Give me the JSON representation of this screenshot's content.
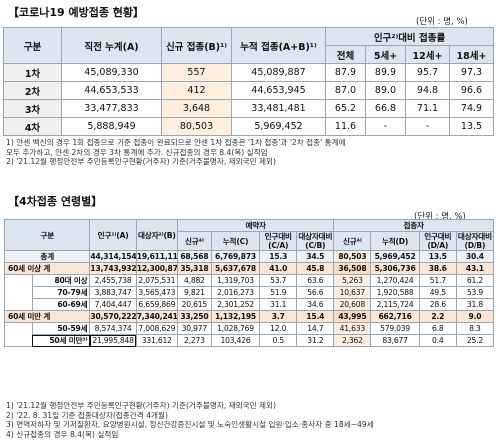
{
  "section1": {
    "title": "【코로나19 예방접종 현황】",
    "unit": "(단위 : 명, %)",
    "headers": {
      "category": "구분",
      "prev_cum": "직전 누계(A)",
      "new": "신규 접종(B)¹⁾",
      "cum": "누적 접종(A+B)¹⁾",
      "ratio_group": "인구²⁾대비 접종률",
      "all": "전체",
      "age5": "5세+",
      "age12": "12세+",
      "age18": "18세+"
    },
    "rows": [
      {
        "label": "1차",
        "prev": "45,089,330",
        "new": "557",
        "cum": "45,089,887",
        "all": "87.9",
        "a5": "89.9",
        "a12": "95.7",
        "a18": "97.3"
      },
      {
        "label": "2차",
        "prev": "44,653,533",
        "new": "412",
        "cum": "44,653,945",
        "all": "87.0",
        "a5": "89.0",
        "a12": "94.8",
        "a18": "96.6"
      },
      {
        "label": "3차",
        "prev": "33,477,833",
        "new": "3,648",
        "cum": "33,481,481",
        "all": "65.2",
        "a5": "66.8",
        "a12": "71.1",
        "a18": "74.9"
      },
      {
        "label": "4차",
        "prev": "5,888,949",
        "new": "80,503",
        "cum": "5,969,452",
        "all": "11.6",
        "a5": "-",
        "a12": "-",
        "a18": "13.5"
      }
    ],
    "notes": [
      "1) 얀센 백신의 경우 1회 접종으로 기준 접종이 완료되므로 얀센 1차 접종은 '1차 접종'과 '2차 접종' 통계에",
      "   모두 추가하고, 얀센 2차의 경우 3차 통계에 추가. 신규접종의 경우 8.4(목) 실적임",
      "2) '21.12월 행정안전부 주민등록인구현황(거주자) 기준(거주불명자, 재외국민 제외)"
    ]
  },
  "section2": {
    "title": "【4차접종 연령별】",
    "unit": "(단위 : 명, %)",
    "headers": {
      "category": "구분",
      "population": "인구¹⁾(A)",
      "target": "대상자²⁾(B)",
      "reserve_group": "예약자",
      "vacc_group": "접종자",
      "new_r": "신규⁴⁾",
      "cum_r": "누적(C)",
      "pop_ratio_r": "인구대비(C/A)",
      "tgt_ratio_r": "대상자대비(C/B)",
      "new_v": "신규⁴⁾",
      "cum_v": "누적(D)",
      "pop_ratio_v": "인구대비(D/A)",
      "tgt_ratio_v": "대상자대비(D/B)"
    },
    "rows": [
      {
        "label": "총계",
        "pop": "44,314,154",
        "tgt": "19,611,114",
        "rnew": "68,568",
        "rcum": "6,769,873",
        "rpop": "15.3",
        "rtgt": "34.5",
        "vnew": "80,503",
        "vcum": "5,969,452",
        "vpop": "13.5",
        "vtgt": "30.4",
        "kind": "total"
      },
      {
        "label": "60세 이상 계",
        "pop": "13,743,932",
        "tgt": "12,300,873",
        "rnew": "35,318",
        "rcum": "5,637,678",
        "rpop": "41.0",
        "rtgt": "45.8",
        "vnew": "36,508",
        "vcum": "5,306,736",
        "vpop": "38.6",
        "vtgt": "43.1",
        "kind": "grp"
      },
      {
        "label": "80대 이상",
        "pop": "2,455,738",
        "tgt": "2,075,531",
        "rnew": "4,882",
        "rcum": "1,319,703",
        "rpop": "53.7",
        "rtgt": "63.6",
        "vnew": "5,263",
        "vcum": "1,270,424",
        "vpop": "51.7",
        "vtgt": "61.2",
        "kind": "sub"
      },
      {
        "label": "70-79세",
        "pop": "3,883,747",
        "tgt": "3,565,473",
        "rnew": "9,821",
        "rcum": "2,016,273",
        "rpop": "51.9",
        "rtgt": "56.6",
        "vnew": "10,637",
        "vcum": "1,920,588",
        "vpop": "49.5",
        "vtgt": "53.9",
        "kind": "sub"
      },
      {
        "label": "60-69세",
        "pop": "7,404,447",
        "tgt": "6,659,869",
        "rnew": "20,615",
        "rcum": "2,301,252",
        "rpop": "31.1",
        "rtgt": "34.6",
        "vnew": "20,608",
        "vcum": "2,115,724",
        "vpop": "28.6",
        "vtgt": "31.8",
        "kind": "sub"
      },
      {
        "label": "60세 미만 계",
        "pop": "30,570,222",
        "tgt": "7,340,241",
        "rnew": "33,250",
        "rcum": "1,132,195",
        "rpop": "3.7",
        "rtgt": "15.4",
        "vnew": "43,995",
        "vcum": "662,716",
        "vpop": "2.2",
        "vtgt": "9.0",
        "kind": "grp"
      },
      {
        "label": "50-59세",
        "pop": "8,574,374",
        "tgt": "7,008,629",
        "rnew": "30,977",
        "rcum": "1,028,769",
        "rpop": "12.0",
        "rtgt": "14.7",
        "vnew": "41,633",
        "vcum": "579,039",
        "vpop": "6.8",
        "vtgt": "8.3",
        "kind": "sub"
      },
      {
        "label": "50세 미만³⁾",
        "pop": "21,995,848",
        "tgt": "331,612",
        "rnew": "2,273",
        "rcum": "103,426",
        "rpop": "0.5",
        "rtgt": "31.2",
        "vnew": "2,362",
        "vcum": "83,677",
        "vpop": "0.4",
        "vtgt": "25.2",
        "kind": "sub"
      }
    ],
    "notes": [
      "1) '21.12월 행정안전부 주민등록인구현황(거주자) 기준(거주불명자, 재외국민 제외)",
      "2) '22. 8. 31일 기준 접종대상자(접종간격 4개월)",
      "3) 면역저하자 및 기저질환자, 요양병원시설, 정신건강증진시설 및 노숙인생활시설 입원·입소·종사자 중 18세~49세",
      "4) 신규접종의 경우 8.4(목) 실적임"
    ]
  }
}
